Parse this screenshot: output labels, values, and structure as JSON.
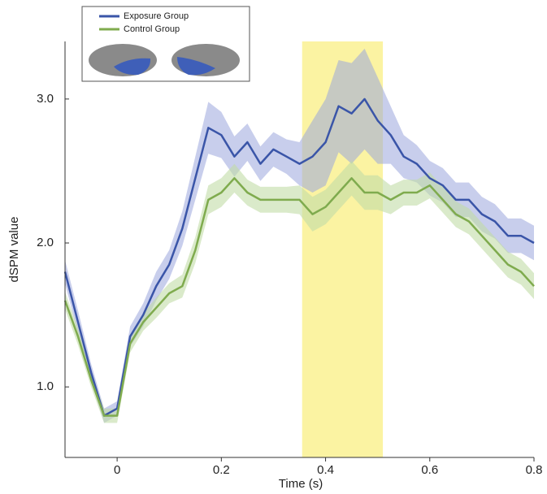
{
  "chart_data": {
    "type": "line",
    "xlabel": "Time (s)",
    "ylabel": "dSPM value",
    "x": [
      -0.1,
      -0.075,
      -0.05,
      -0.025,
      0,
      0.025,
      0.05,
      0.075,
      0.1,
      0.125,
      0.15,
      0.175,
      0.2,
      0.225,
      0.25,
      0.275,
      0.3,
      0.325,
      0.35,
      0.375,
      0.4,
      0.425,
      0.45,
      0.475,
      0.5,
      0.525,
      0.55,
      0.575,
      0.6,
      0.625,
      0.65,
      0.675,
      0.7,
      0.725,
      0.75,
      0.775,
      0.8
    ],
    "series": [
      {
        "name": "Exposure Group",
        "color": "#3a55a8",
        "band_color": "#9aa6dc",
        "values": [
          1.8,
          1.45,
          1.1,
          0.8,
          0.85,
          1.35,
          1.5,
          1.7,
          1.85,
          2.1,
          2.45,
          2.8,
          2.75,
          2.6,
          2.7,
          2.55,
          2.65,
          2.6,
          2.55,
          2.6,
          2.7,
          2.95,
          2.9,
          3.0,
          2.85,
          2.75,
          2.6,
          2.55,
          2.45,
          2.4,
          2.3,
          2.3,
          2.2,
          2.15,
          2.05,
          2.05,
          2.0
        ],
        "errors": [
          0.08,
          0.08,
          0.06,
          0.05,
          0.05,
          0.07,
          0.08,
          0.1,
          0.1,
          0.12,
          0.15,
          0.18,
          0.16,
          0.14,
          0.13,
          0.12,
          0.12,
          0.12,
          0.15,
          0.25,
          0.3,
          0.32,
          0.35,
          0.35,
          0.3,
          0.2,
          0.15,
          0.13,
          0.12,
          0.12,
          0.12,
          0.12,
          0.12,
          0.12,
          0.12,
          0.12,
          0.12
        ]
      },
      {
        "name": "Control Group",
        "color": "#7fab4e",
        "band_color": "#c2dca6",
        "values": [
          1.6,
          1.35,
          1.05,
          0.8,
          0.8,
          1.3,
          1.45,
          1.55,
          1.65,
          1.7,
          1.95,
          2.3,
          2.35,
          2.45,
          2.35,
          2.3,
          2.3,
          2.3,
          2.3,
          2.2,
          2.25,
          2.35,
          2.45,
          2.35,
          2.35,
          2.3,
          2.35,
          2.35,
          2.4,
          2.3,
          2.2,
          2.15,
          2.05,
          1.95,
          1.85,
          1.8,
          1.7
        ],
        "errors": [
          0.06,
          0.06,
          0.05,
          0.05,
          0.05,
          0.06,
          0.06,
          0.07,
          0.07,
          0.08,
          0.09,
          0.1,
          0.1,
          0.1,
          0.09,
          0.09,
          0.09,
          0.09,
          0.1,
          0.12,
          0.12,
          0.12,
          0.12,
          0.12,
          0.12,
          0.1,
          0.09,
          0.09,
          0.09,
          0.09,
          0.09,
          0.09,
          0.09,
          0.09,
          0.09,
          0.09,
          0.09
        ]
      }
    ],
    "xlim": [
      -0.1,
      0.8
    ],
    "ylim": [
      0.51,
      3.4
    ],
    "xticks": [
      0,
      0.2,
      0.4,
      0.6,
      0.8
    ],
    "yticks": [
      {
        "value": 1,
        "label": "1.0"
      },
      {
        "value": 2,
        "label": "2.0"
      },
      {
        "value": 3,
        "label": "3.0"
      }
    ],
    "highlight": [
      0.355,
      0.51
    ],
    "highlight_color": "#fbf3a2"
  }
}
